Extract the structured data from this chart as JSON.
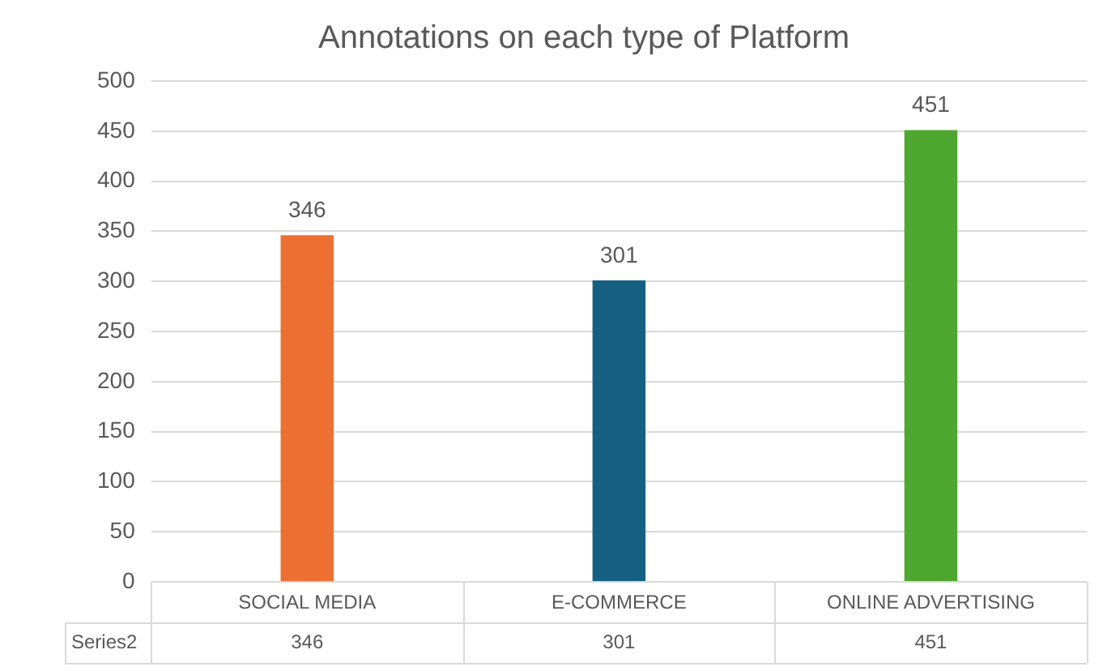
{
  "chart_data": {
    "type": "bar",
    "title": "Annotations on each type of Platform",
    "categories": [
      "SOCIAL MEDIA",
      "E-COMMERCE",
      "ONLINE ADVERTISING"
    ],
    "series": [
      {
        "name": "Series2",
        "colors": [
          "#ed7031",
          "#156082",
          "#4ea72e"
        ],
        "values": [
          346,
          301,
          451
        ],
        "value_labels": [
          "346",
          "301",
          "451"
        ]
      }
    ],
    "ylim": [
      0,
      500
    ],
    "yticks": [
      0,
      50,
      100,
      150,
      200,
      250,
      300,
      350,
      400,
      450,
      500
    ],
    "annotations": [
      "346",
      "301",
      "451"
    ],
    "grid": "y",
    "legend": false
  }
}
